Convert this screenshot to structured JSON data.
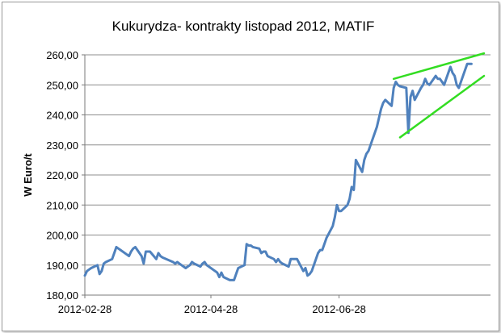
{
  "chart_data": {
    "type": "line",
    "title": "Kukurydza- kontrakty listopad 2012, MATIF",
    "ylabel": "W Euro/t",
    "xlabel": "",
    "ylim": [
      180,
      260
    ],
    "yticks": [
      "180,00",
      "190,00",
      "200,00",
      "210,00",
      "220,00",
      "230,00",
      "240,00",
      "250,00",
      "260,00"
    ],
    "xticks": [
      {
        "label": "2012-02-28",
        "date": "2012-02-28"
      },
      {
        "label": "2012-04-28",
        "date": "2012-04-28"
      },
      {
        "label": "2012-06-28",
        "date": "2012-06-28"
      }
    ],
    "grid": true,
    "legend": "none",
    "line_color": "#4f81bd",
    "trend_color": "#33dd22",
    "series": [
      {
        "points": [
          [
            "2012-02-28",
            186.5
          ],
          [
            "2012-02-29",
            188.0
          ],
          [
            "2012-03-01",
            188.5
          ],
          [
            "2012-03-02",
            189.0
          ],
          [
            "2012-03-05",
            190.0
          ],
          [
            "2012-03-06",
            187.0
          ],
          [
            "2012-03-07",
            188.0
          ],
          [
            "2012-03-08",
            190.5
          ],
          [
            "2012-03-09",
            191.0
          ],
          [
            "2012-03-12",
            192.0
          ],
          [
            "2012-03-13",
            194.0
          ],
          [
            "2012-03-14",
            196.0
          ],
          [
            "2012-03-15",
            195.5
          ],
          [
            "2012-03-16",
            195.0
          ],
          [
            "2012-03-19",
            193.5
          ],
          [
            "2012-03-20",
            193.0
          ],
          [
            "2012-03-21",
            194.5
          ],
          [
            "2012-03-22",
            195.5
          ],
          [
            "2012-03-23",
            196.0
          ],
          [
            "2012-03-26",
            193.0
          ],
          [
            "2012-03-27",
            190.5
          ],
          [
            "2012-03-28",
            194.5
          ],
          [
            "2012-03-29",
            194.5
          ],
          [
            "2012-03-30",
            194.5
          ],
          [
            "2012-04-02",
            192.0
          ],
          [
            "2012-04-03",
            194.0
          ],
          [
            "2012-04-04",
            193.0
          ],
          [
            "2012-04-05",
            192.5
          ],
          [
            "2012-04-10",
            191.0
          ],
          [
            "2012-04-11",
            190.5
          ],
          [
            "2012-04-12",
            191.0
          ],
          [
            "2012-04-13",
            190.5
          ],
          [
            "2012-04-16",
            189.0
          ],
          [
            "2012-04-17",
            189.5
          ],
          [
            "2012-04-18",
            190.0
          ],
          [
            "2012-04-19",
            191.0
          ],
          [
            "2012-04-20",
            190.5
          ],
          [
            "2012-04-23",
            189.5
          ],
          [
            "2012-04-24",
            190.5
          ],
          [
            "2012-04-25",
            191.0
          ],
          [
            "2012-04-26",
            190.0
          ],
          [
            "2012-04-27",
            189.5
          ],
          [
            "2012-04-30",
            188.0
          ],
          [
            "2012-05-01",
            187.5
          ],
          [
            "2012-05-02",
            186.0
          ],
          [
            "2012-05-03",
            187.5
          ],
          [
            "2012-05-04",
            186.0
          ],
          [
            "2012-05-07",
            185.0
          ],
          [
            "2012-05-08",
            185.0
          ],
          [
            "2012-05-09",
            185.0
          ],
          [
            "2012-05-10",
            187.0
          ],
          [
            "2012-05-11",
            189.0
          ],
          [
            "2012-05-14",
            190.0
          ],
          [
            "2012-05-15",
            197.0
          ],
          [
            "2012-05-16",
            196.5
          ],
          [
            "2012-05-17",
            196.5
          ],
          [
            "2012-05-18",
            196.0
          ],
          [
            "2012-05-21",
            195.5
          ],
          [
            "2012-05-22",
            194.0
          ],
          [
            "2012-05-23",
            194.5
          ],
          [
            "2012-05-24",
            194.5
          ],
          [
            "2012-05-25",
            193.0
          ],
          [
            "2012-05-28",
            192.0
          ],
          [
            "2012-05-29",
            191.0
          ],
          [
            "2012-05-30",
            192.0
          ],
          [
            "2012-05-31",
            191.0
          ],
          [
            "2012-06-01",
            190.5
          ],
          [
            "2012-06-04",
            189.5
          ],
          [
            "2012-06-05",
            192.0
          ],
          [
            "2012-06-06",
            192.0
          ],
          [
            "2012-06-07",
            192.0
          ],
          [
            "2012-06-08",
            192.0
          ],
          [
            "2012-06-11",
            188.0
          ],
          [
            "2012-06-12",
            189.0
          ],
          [
            "2012-06-13",
            186.5
          ],
          [
            "2012-06-14",
            187.0
          ],
          [
            "2012-06-15",
            188.0
          ],
          [
            "2012-06-18",
            194.0
          ],
          [
            "2012-06-19",
            195.0
          ],
          [
            "2012-06-20",
            195.0
          ],
          [
            "2012-06-21",
            197.0
          ],
          [
            "2012-06-22",
            199.0
          ],
          [
            "2012-06-25",
            203.0
          ],
          [
            "2012-06-26",
            206.0
          ],
          [
            "2012-06-27",
            210.0
          ],
          [
            "2012-06-28",
            208.0
          ],
          [
            "2012-06-29",
            208.0
          ],
          [
            "2012-07-02",
            210.0
          ],
          [
            "2012-07-03",
            212.0
          ],
          [
            "2012-07-04",
            216.0
          ],
          [
            "2012-07-05",
            215.0
          ],
          [
            "2012-07-06",
            225.0
          ],
          [
            "2012-07-09",
            221.0
          ],
          [
            "2012-07-10",
            225.0
          ],
          [
            "2012-07-11",
            227.0
          ],
          [
            "2012-07-12",
            228.0
          ],
          [
            "2012-07-13",
            230.0
          ],
          [
            "2012-07-16",
            236.0
          ],
          [
            "2012-07-17",
            239.0
          ],
          [
            "2012-07-18",
            242.0
          ],
          [
            "2012-07-19",
            244.0
          ],
          [
            "2012-07-20",
            245.0
          ],
          [
            "2012-07-23",
            243.0
          ],
          [
            "2012-07-24",
            249.0
          ],
          [
            "2012-07-25",
            251.0
          ],
          [
            "2012-07-26",
            250.0
          ],
          [
            "2012-07-27",
            249.5
          ],
          [
            "2012-07-30",
            249.0
          ],
          [
            "2012-07-31",
            234.0
          ],
          [
            "2012-08-01",
            246.0
          ],
          [
            "2012-08-02",
            248.0
          ],
          [
            "2012-08-03",
            245.0
          ],
          [
            "2012-08-06",
            249.0
          ],
          [
            "2012-08-07",
            250.0
          ],
          [
            "2012-08-08",
            252.0
          ],
          [
            "2012-08-09",
            250.5
          ],
          [
            "2012-08-10",
            250.0
          ],
          [
            "2012-08-13",
            253.0
          ],
          [
            "2012-08-14",
            252.0
          ],
          [
            "2012-08-15",
            252.0
          ],
          [
            "2012-08-16",
            251.0
          ],
          [
            "2012-08-17",
            250.0
          ],
          [
            "2012-08-20",
            256.0
          ],
          [
            "2012-08-21",
            254.0
          ],
          [
            "2012-08-22",
            253.0
          ],
          [
            "2012-08-23",
            250.0
          ],
          [
            "2012-08-24",
            249.0
          ],
          [
            "2012-08-27",
            255.0
          ],
          [
            "2012-08-28",
            257.0
          ],
          [
            "2012-08-29",
            257.0
          ],
          [
            "2012-08-30",
            257.0
          ]
        ]
      }
    ],
    "annotations": [
      {
        "type": "trendline",
        "from": [
          "2012-07-24",
          252.0
        ],
        "to": [
          "2012-09-05",
          260.5
        ]
      },
      {
        "type": "trendline",
        "from": [
          "2012-07-27",
          232.5
        ],
        "to": [
          "2012-09-05",
          253.0
        ]
      }
    ]
  }
}
